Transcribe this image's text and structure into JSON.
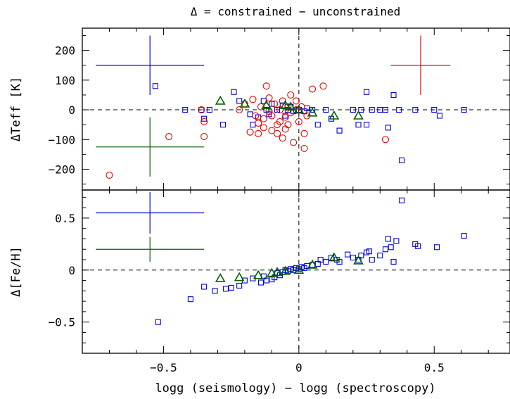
{
  "chart_data": {
    "type": "scatter",
    "title": "Δ = constrained − unconstrained",
    "xlabel": "logg (seismology) − logg (spectroscopy)",
    "xlim": [
      -0.8,
      0.78
    ],
    "x_ticks": [
      -0.5,
      0,
      0.5
    ],
    "x_tick_labels": [
      "−0.5",
      "0",
      "0.5"
    ],
    "colors": {
      "blue": "#0000dd",
      "red": "#ee0000",
      "green": "#006400"
    },
    "panels": [
      {
        "id": "teff",
        "ylabel": "ΔTeff [K]",
        "ylim": [
          -270,
          275
        ],
        "y_ticks": [
          -200,
          -100,
          0,
          100,
          200
        ],
        "y_tick_labels": [
          "−200",
          "−100",
          "0",
          "100",
          "200"
        ],
        "error_crosses": [
          {
            "color": "#0000dd",
            "x": -0.55,
            "y": 150,
            "xerr": 0.2,
            "yerr": 100
          },
          {
            "color": "#006400",
            "x": -0.55,
            "y": -125,
            "xerr": 0.2,
            "yerr": 100
          },
          {
            "color": "#ee0000",
            "x": 0.45,
            "y": 150,
            "xerr": 0.11,
            "yerr": 100
          }
        ],
        "series": [
          {
            "marker": "square",
            "color": "#0000dd",
            "points": [
              [
                -0.53,
                80
              ],
              [
                -0.42,
                0
              ],
              [
                -0.36,
                0
              ],
              [
                -0.35,
                -30
              ],
              [
                -0.33,
                0
              ],
              [
                -0.28,
                -50
              ],
              [
                -0.24,
                60
              ],
              [
                -0.22,
                30
              ],
              [
                -0.18,
                -15
              ],
              [
                -0.17,
                -50
              ],
              [
                -0.15,
                -25
              ],
              [
                -0.13,
                30
              ],
              [
                -0.12,
                0
              ],
              [
                -0.11,
                -15
              ],
              [
                -0.1,
                20
              ],
              [
                -0.08,
                0
              ],
              [
                -0.06,
                15
              ],
              [
                -0.05,
                -20
              ],
              [
                -0.04,
                0
              ],
              [
                -0.03,
                10
              ],
              [
                -0.02,
                -5
              ],
              [
                -0.01,
                0
              ],
              [
                0.0,
                0
              ],
              [
                0.02,
                -5
              ],
              [
                0.03,
                5
              ],
              [
                0.05,
                0
              ],
              [
                0.07,
                -50
              ],
              [
                0.1,
                0
              ],
              [
                0.12,
                -30
              ],
              [
                0.15,
                -70
              ],
              [
                0.2,
                0
              ],
              [
                0.22,
                -50
              ],
              [
                0.23,
                0
              ],
              [
                0.25,
                60
              ],
              [
                0.25,
                -50
              ],
              [
                0.27,
                0
              ],
              [
                0.3,
                0
              ],
              [
                0.32,
                0
              ],
              [
                0.33,
                -60
              ],
              [
                0.35,
                50
              ],
              [
                0.37,
                0
              ],
              [
                0.38,
                -170
              ],
              [
                0.43,
                0
              ],
              [
                0.5,
                0
              ],
              [
                0.52,
                -20
              ],
              [
                0.61,
                0
              ]
            ]
          },
          {
            "marker": "circle",
            "color": "#ee0000",
            "points": [
              [
                -0.7,
                -220
              ],
              [
                -0.48,
                -90
              ],
              [
                -0.36,
                0
              ],
              [
                -0.35,
                -40
              ],
              [
                -0.35,
                -90
              ],
              [
                -0.22,
                0
              ],
              [
                -0.2,
                20
              ],
              [
                -0.18,
                -75
              ],
              [
                -0.17,
                35
              ],
              [
                -0.16,
                -20
              ],
              [
                -0.15,
                -45
              ],
              [
                -0.15,
                -80
              ],
              [
                -0.14,
                10
              ],
              [
                -0.13,
                -30
              ],
              [
                -0.13,
                -60
              ],
              [
                -0.12,
                80
              ],
              [
                -0.11,
                40
              ],
              [
                -0.11,
                -5
              ],
              [
                -0.1,
                -20
              ],
              [
                -0.1,
                -70
              ],
              [
                -0.09,
                20
              ],
              [
                -0.08,
                -50
              ],
              [
                -0.08,
                -80
              ],
              [
                -0.07,
                0
              ],
              [
                -0.07,
                -40
              ],
              [
                -0.06,
                30
              ],
              [
                -0.06,
                -95
              ],
              [
                -0.05,
                -25
              ],
              [
                -0.05,
                -65
              ],
              [
                -0.04,
                10
              ],
              [
                -0.04,
                -50
              ],
              [
                -0.03,
                -10
              ],
              [
                -0.03,
                50
              ],
              [
                -0.02,
                -110
              ],
              [
                -0.01,
                0
              ],
              [
                -0.01,
                30
              ],
              [
                0.0,
                -40
              ],
              [
                0.01,
                10
              ],
              [
                0.02,
                -130
              ],
              [
                0.02,
                -80
              ],
              [
                0.03,
                -20
              ],
              [
                0.05,
                70
              ],
              [
                0.09,
                80
              ],
              [
                0.32,
                -100
              ]
            ]
          },
          {
            "marker": "triangle",
            "color": "#006400",
            "points": [
              [
                -0.29,
                30
              ],
              [
                -0.2,
                20
              ],
              [
                -0.12,
                15
              ],
              [
                -0.05,
                15
              ],
              [
                -0.03,
                10
              ],
              [
                0.0,
                0
              ],
              [
                0.05,
                -10
              ],
              [
                0.13,
                -20
              ],
              [
                0.22,
                -20
              ]
            ]
          }
        ]
      },
      {
        "id": "feh",
        "ylabel": "Δ[Fe/H]",
        "ylim": [
          -0.8,
          0.77
        ],
        "y_ticks": [
          -0.5,
          0,
          0.5
        ],
        "y_tick_labels": [
          "−0.5",
          "0",
          "0.5"
        ],
        "error_crosses": [
          {
            "color": "#0000dd",
            "x": -0.55,
            "y": 0.55,
            "xerr": 0.2,
            "yerr": 0.2
          },
          {
            "color": "#006400",
            "x": -0.55,
            "y": 0.2,
            "xerr": 0.2,
            "yerr": 0.12
          }
        ],
        "series": [
          {
            "marker": "square",
            "color": "#0000dd",
            "points": [
              [
                -0.52,
                -0.5
              ],
              [
                -0.4,
                -0.28
              ],
              [
                -0.35,
                -0.16
              ],
              [
                -0.31,
                -0.2
              ],
              [
                -0.27,
                -0.18
              ],
              [
                -0.25,
                -0.17
              ],
              [
                -0.22,
                -0.15
              ],
              [
                -0.2,
                -0.1
              ],
              [
                -0.17,
                -0.08
              ],
              [
                -0.14,
                -0.12
              ],
              [
                -0.13,
                -0.06
              ],
              [
                -0.12,
                -0.1
              ],
              [
                -0.1,
                -0.09
              ],
              [
                -0.09,
                -0.07
              ],
              [
                -0.08,
                -0.03
              ],
              [
                -0.07,
                -0.05
              ],
              [
                -0.06,
                -0.02
              ],
              [
                -0.05,
                0.0
              ],
              [
                -0.04,
                -0.01
              ],
              [
                -0.03,
                0.01
              ],
              [
                -0.02,
                0.0
              ],
              [
                -0.01,
                0.02
              ],
              [
                0.0,
                0.01
              ],
              [
                0.01,
                0.03
              ],
              [
                0.02,
                0.02
              ],
              [
                0.03,
                0.04
              ],
              [
                0.05,
                0.05
              ],
              [
                0.07,
                0.06
              ],
              [
                0.08,
                0.1
              ],
              [
                0.1,
                0.08
              ],
              [
                0.12,
                0.12
              ],
              [
                0.14,
                0.1
              ],
              [
                0.15,
                0.08
              ],
              [
                0.18,
                0.15
              ],
              [
                0.2,
                0.12
              ],
              [
                0.22,
                0.1
              ],
              [
                0.23,
                0.14
              ],
              [
                0.25,
                0.17
              ],
              [
                0.26,
                0.18
              ],
              [
                0.27,
                0.1
              ],
              [
                0.3,
                0.14
              ],
              [
                0.32,
                0.2
              ],
              [
                0.33,
                0.3
              ],
              [
                0.34,
                0.22
              ],
              [
                0.35,
                0.08
              ],
              [
                0.36,
                0.28
              ],
              [
                0.38,
                0.67
              ],
              [
                0.43,
                0.25
              ],
              [
                0.44,
                0.23
              ],
              [
                0.51,
                0.22
              ],
              [
                0.61,
                0.33
              ]
            ]
          },
          {
            "marker": "triangle",
            "color": "#006400",
            "points": [
              [
                -0.29,
                -0.08
              ],
              [
                -0.22,
                -0.07
              ],
              [
                -0.15,
                -0.05
              ],
              [
                -0.1,
                -0.03
              ],
              [
                -0.08,
                -0.02
              ],
              [
                -0.05,
                -0.01
              ],
              [
                0.0,
                0.0
              ],
              [
                0.05,
                0.05
              ],
              [
                0.13,
                0.12
              ],
              [
                0.22,
                0.09
              ]
            ]
          }
        ]
      }
    ]
  }
}
